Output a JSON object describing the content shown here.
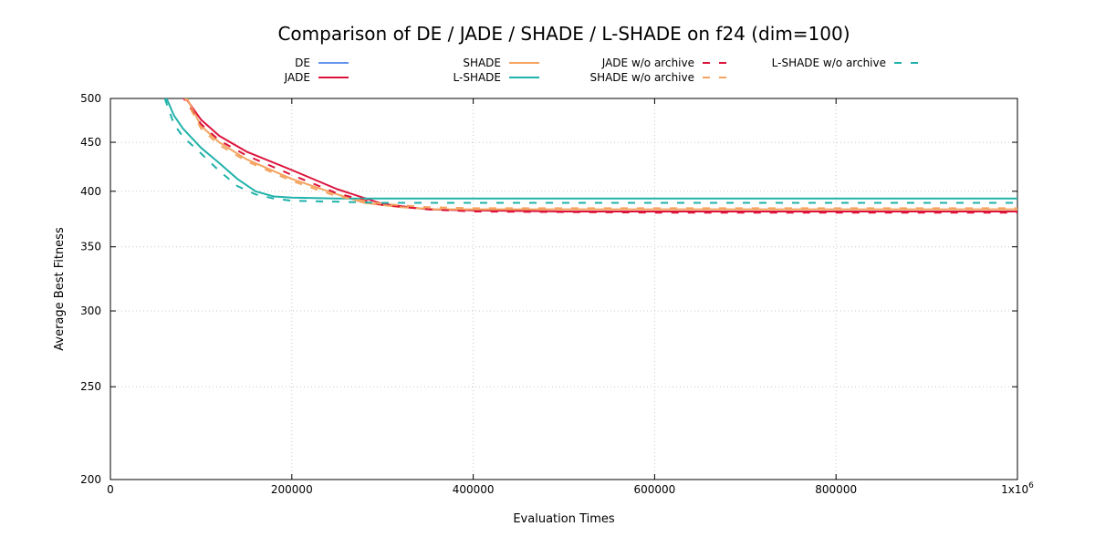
{
  "chart_data": {
    "type": "line",
    "title": "Comparison of DE / JADE / SHADE / L-SHADE on f24 (dim=100)",
    "xlabel": "Evaluation Times",
    "ylabel": "Average Best Fitness",
    "xlim": [
      0,
      1000000
    ],
    "ylim": [
      200,
      500
    ],
    "y_scale": "log",
    "x_ticks": [
      {
        "value": 0,
        "label": "0"
      },
      {
        "value": 200000,
        "label": "200000"
      },
      {
        "value": 400000,
        "label": "400000"
      },
      {
        "value": 600000,
        "label": "600000"
      },
      {
        "value": 800000,
        "label": "800000"
      }
    ],
    "x_end_label": "1x10",
    "x_end_exponent": "6",
    "y_ticks": [
      {
        "value": 200,
        "label": "200"
      },
      {
        "value": 250,
        "label": "250"
      },
      {
        "value": 300,
        "label": "300"
      },
      {
        "value": 350,
        "label": "350"
      },
      {
        "value": 400,
        "label": "400"
      },
      {
        "value": 450,
        "label": "450"
      },
      {
        "value": 500,
        "label": "500"
      }
    ],
    "grid": true,
    "legend_position": "top",
    "series": [
      {
        "name": "DE",
        "color": "#6495ed",
        "dash": false,
        "x": [],
        "y": []
      },
      {
        "name": "JADE",
        "color": "#dc143c",
        "dash": false,
        "x": [
          80000,
          100000,
          120000,
          150000,
          200000,
          250000,
          300000,
          350000,
          400000,
          500000,
          600000,
          800000,
          1000000
        ],
        "y": [
          505,
          475,
          457,
          440,
          421,
          402,
          388,
          383,
          382,
          381,
          381,
          381,
          381
        ]
      },
      {
        "name": "SHADE",
        "color": "#f4a460",
        "dash": false,
        "x": [
          82000,
          100000,
          120000,
          150000,
          200000,
          250000,
          280000,
          320000,
          360000,
          400000,
          600000,
          800000,
          1000000
        ],
        "y": [
          505,
          468,
          450,
          432,
          412,
          397,
          389,
          385,
          383,
          383,
          383,
          383,
          383
        ]
      },
      {
        "name": "L-SHADE",
        "color": "#20b2aa",
        "dash": false,
        "x": [
          60000,
          70000,
          80000,
          100000,
          120000,
          140000,
          160000,
          180000,
          200000,
          250000,
          300000,
          400000,
          600000,
          800000,
          1000000
        ],
        "y": [
          505,
          480,
          465,
          444,
          428,
          412,
          400,
          395,
          394,
          393,
          393,
          393,
          393,
          393,
          393
        ]
      },
      {
        "name": "JADE w/o archive",
        "color": "#dc143c",
        "dash": true,
        "x": [
          78000,
          100000,
          120000,
          150000,
          200000,
          250000,
          300000,
          350000,
          400000,
          600000,
          800000,
          1000000
        ],
        "y": [
          505,
          470,
          452,
          436,
          416,
          398,
          387,
          383,
          381,
          380,
          380,
          380
        ]
      },
      {
        "name": "SHADE w/o archive",
        "color": "#f4a460",
        "dash": true,
        "x": [
          80000,
          100000,
          120000,
          150000,
          200000,
          250000,
          300000,
          350000,
          400000,
          600000,
          800000,
          1000000
        ],
        "y": [
          505,
          465,
          447,
          430,
          410,
          395,
          388,
          385,
          384,
          384,
          384,
          384
        ]
      },
      {
        "name": "L-SHADE w/o archive",
        "color": "#20b2aa",
        "dash": true,
        "x": [
          60000,
          70000,
          80000,
          100000,
          120000,
          140000,
          160000,
          180000,
          200000,
          250000,
          300000,
          400000,
          600000,
          800000,
          1000000
        ],
        "y": [
          500,
          470,
          456,
          438,
          420,
          405,
          397,
          393,
          391,
          390,
          389,
          389,
          389,
          389,
          389
        ]
      }
    ]
  }
}
